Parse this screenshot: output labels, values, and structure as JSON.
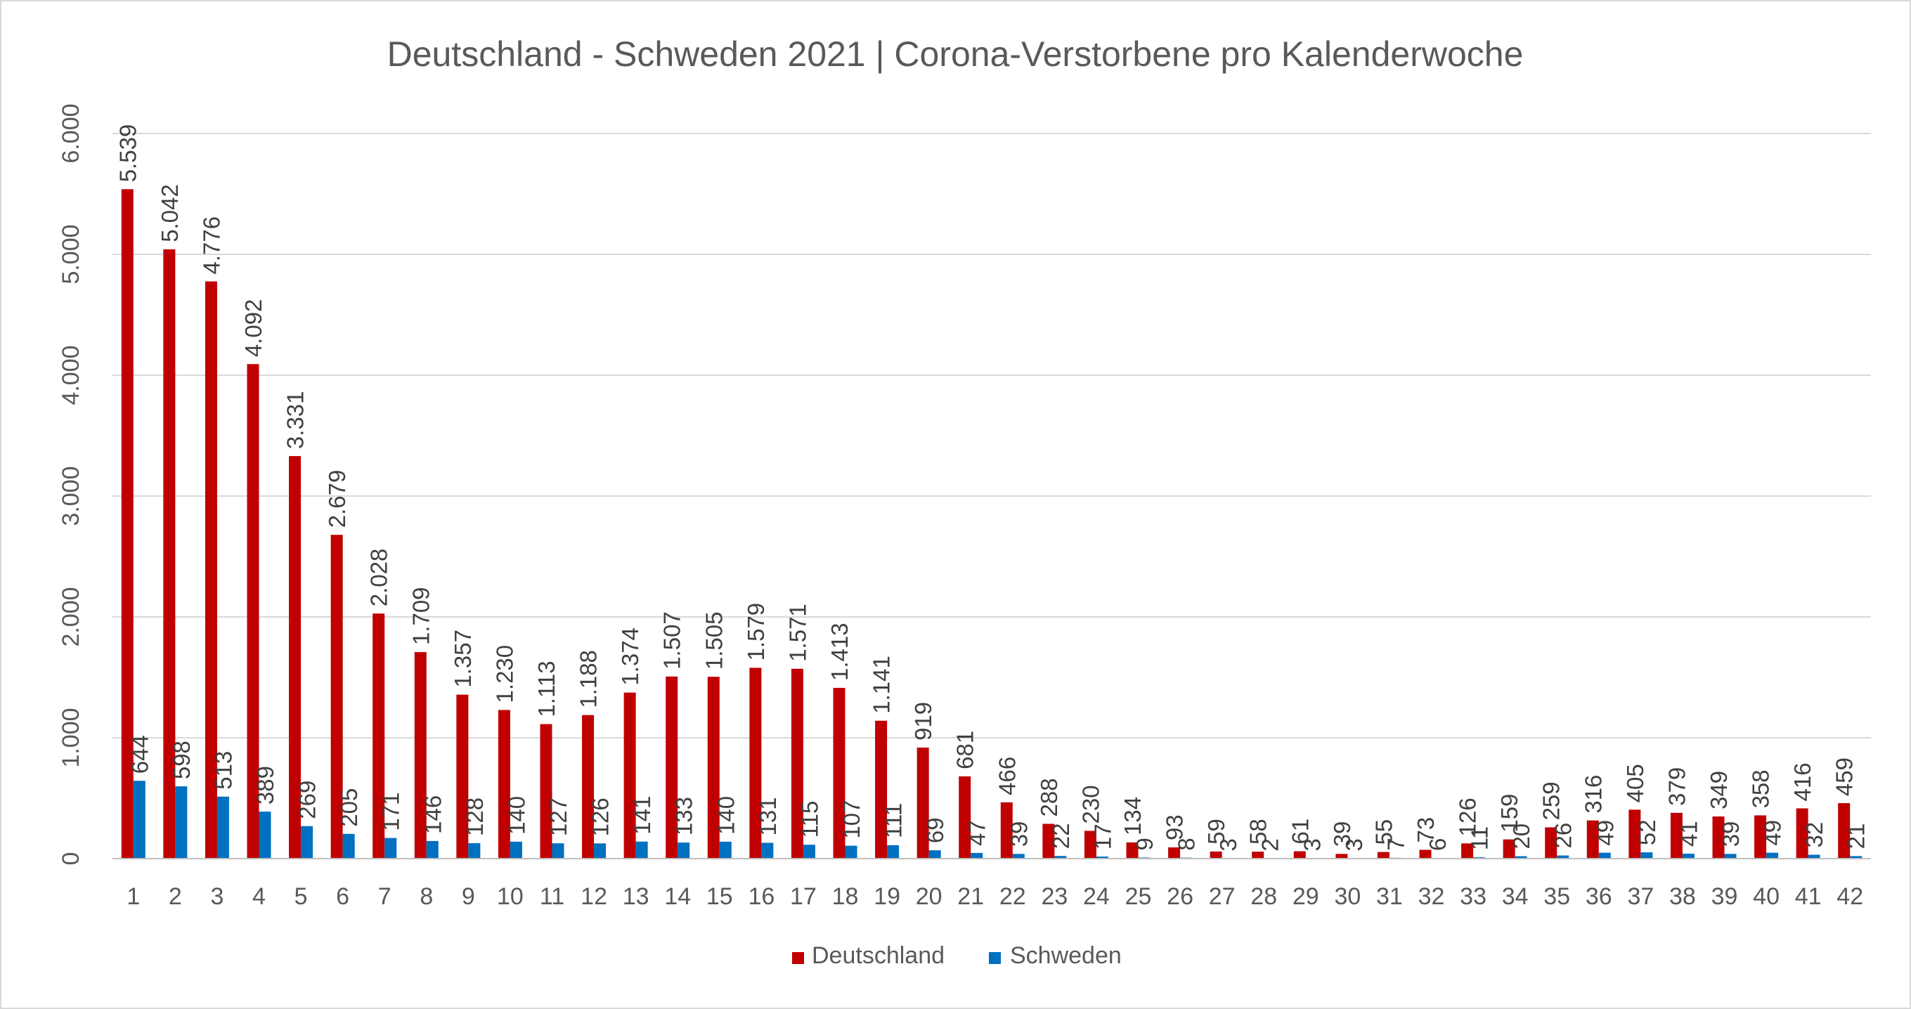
{
  "chart_data": {
    "type": "bar",
    "title": "Deutschland - Schweden 2021 | Corona-Verstorbene pro Kalenderwoche",
    "xlabel": "",
    "ylabel": "",
    "ylim": [
      0,
      6000
    ],
    "yticks": [
      0,
      1000,
      2000,
      3000,
      4000,
      5000,
      6000
    ],
    "ytick_labels": [
      "0",
      "1.000",
      "2.000",
      "3.000",
      "4.000",
      "5.000",
      "6.000"
    ],
    "grid": true,
    "legend_position": "bottom",
    "categories": [
      "1",
      "2",
      "3",
      "4",
      "5",
      "6",
      "7",
      "8",
      "9",
      "10",
      "11",
      "12",
      "13",
      "14",
      "15",
      "16",
      "17",
      "18",
      "19",
      "20",
      "21",
      "22",
      "23",
      "24",
      "25",
      "26",
      "27",
      "28",
      "29",
      "30",
      "31",
      "32",
      "33",
      "34",
      "35",
      "36",
      "37",
      "38",
      "39",
      "40",
      "41",
      "42"
    ],
    "series": [
      {
        "name": "Deutschland",
        "color": "#c00000",
        "values": [
          5539,
          5042,
          4776,
          4092,
          3331,
          2679,
          2028,
          1709,
          1357,
          1230,
          1113,
          1188,
          1374,
          1507,
          1505,
          1579,
          1571,
          1413,
          1141,
          919,
          681,
          466,
          288,
          230,
          134,
          93,
          59,
          58,
          61,
          39,
          55,
          73,
          126,
          159,
          259,
          316,
          405,
          379,
          349,
          358,
          416,
          459
        ],
        "labels": [
          "5.539",
          "5.042",
          "4.776",
          "4.092",
          "3.331",
          "2.679",
          "2.028",
          "1.709",
          "1.357",
          "1.230",
          "1.113",
          "1.188",
          "1.374",
          "1.507",
          "1.505",
          "1.579",
          "1.571",
          "1.413",
          "1.141",
          "919",
          "681",
          "466",
          "288",
          "230",
          "134",
          "93",
          "59",
          "58",
          "61",
          "39",
          "55",
          "73",
          "126",
          "159",
          "259",
          "316",
          "405",
          "379",
          "349",
          "358",
          "416",
          "459"
        ]
      },
      {
        "name": "Schweden",
        "color": "#0070c0",
        "values": [
          644,
          598,
          513,
          389,
          269,
          205,
          171,
          146,
          128,
          140,
          127,
          126,
          141,
          133,
          140,
          131,
          115,
          107,
          111,
          69,
          47,
          39,
          22,
          17,
          9,
          8,
          3,
          2,
          3,
          3,
          7,
          6,
          11,
          20,
          26,
          49,
          52,
          41,
          39,
          49,
          32,
          21
        ],
        "labels": [
          "644",
          "598",
          "513",
          "389",
          "269",
          "205",
          "171",
          "146",
          "128",
          "140",
          "127",
          "126",
          "141",
          "133",
          "140",
          "131",
          "115",
          "107",
          "111",
          "69",
          "47",
          "39",
          "22",
          "17",
          "9",
          "8",
          "3",
          "2",
          "3",
          "3",
          "7",
          "6",
          "11",
          "20",
          "26",
          "49",
          "52",
          "41",
          "39",
          "49",
          "32",
          "21"
        ]
      }
    ]
  }
}
